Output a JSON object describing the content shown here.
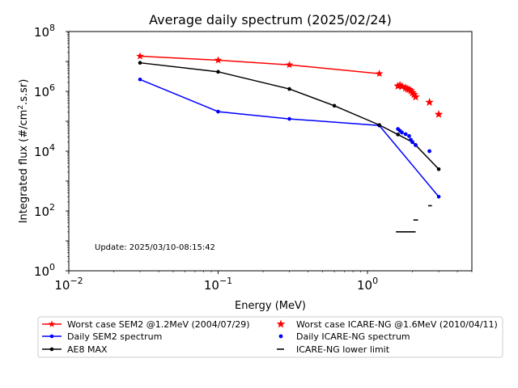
{
  "chart_data": {
    "type": "line",
    "title": "Average daily spectrum (2025/02/24)",
    "xlabel": "Energy (MeV)",
    "ylabel_prefix": "Integrated flux (#/cm",
    "ylabel_sup": "2",
    "ylabel_suffix": ".s.sr)",
    "xscale": "log",
    "yscale": "log",
    "xlim": [
      0.01,
      5
    ],
    "ylim": [
      1,
      100000000
    ],
    "x_ticks": [
      {
        "value": 0.01,
        "base": "10",
        "exp": "−2"
      },
      {
        "value": 0.1,
        "base": "10",
        "exp": "−1"
      },
      {
        "value": 1,
        "base": "10",
        "exp": "0"
      }
    ],
    "y_ticks": [
      {
        "value": 1,
        "base": "10",
        "exp": "0"
      },
      {
        "value": 100,
        "base": "10",
        "exp": "2"
      },
      {
        "value": 10000,
        "base": "10",
        "exp": "4"
      },
      {
        "value": 1000000,
        "base": "10",
        "exp": "6"
      },
      {
        "value": 100000000,
        "base": "10",
        "exp": "8"
      }
    ],
    "annotation": "Update: 2025/03/10-08:15:42",
    "legend_position": "below",
    "series": [
      {
        "name": "Worst case SEM2 @1.2MeV (2004/07/29)",
        "color": "#ff0000",
        "style": "line-star",
        "x": [
          0.03,
          0.1,
          0.3,
          1.2
        ],
        "y": [
          15000000,
          11000000,
          7700000,
          3900000
        ]
      },
      {
        "name": "Daily SEM2 spectrum",
        "color": "#0000ff",
        "style": "line-dot",
        "x": [
          0.03,
          0.1,
          0.3,
          1.2,
          3.0
        ],
        "y": [
          2500000,
          210000,
          120000,
          72000,
          300
        ]
      },
      {
        "name": "AE8 MAX",
        "color": "#000000",
        "style": "line-dot",
        "x": [
          0.03,
          0.1,
          0.3,
          0.6,
          1.2,
          1.6,
          2.0,
          2.1,
          3.0
        ],
        "y": [
          9000000,
          4500000,
          1200000,
          330000,
          75000,
          36000,
          20000,
          16000,
          2500
        ]
      },
      {
        "name": "Worst case ICARE-NG @1.6MeV (2010/04/11)",
        "color": "#ff0000",
        "style": "star",
        "x": [
          1.6,
          1.65,
          1.7,
          1.8,
          1.85,
          1.9,
          1.95,
          2.0,
          2.05,
          2.1,
          2.6,
          3.0
        ],
        "y": [
          1500000,
          1600000,
          1450000,
          1300000,
          1200000,
          1150000,
          1050000,
          900000,
          780000,
          650000,
          430000,
          170000
        ]
      },
      {
        "name": "Daily ICARE-NG spectrum",
        "color": "#0000ff",
        "style": "dot",
        "x": [
          1.6,
          1.65,
          1.7,
          1.8,
          1.9,
          1.95,
          2.0,
          2.1,
          2.6
        ],
        "y": [
          55000,
          48000,
          42000,
          37000,
          32000,
          24000,
          20000,
          16000,
          10000
        ]
      },
      {
        "name": "ICARE-NG lower limit",
        "color": "#000000",
        "style": "hline",
        "segments": [
          {
            "x": [
              1.55,
              2.1
            ],
            "y": 20
          },
          {
            "x": [
              2.03,
              2.18
            ],
            "y": 50
          },
          {
            "x": [
              2.55,
              2.7
            ],
            "y": 150
          }
        ]
      }
    ]
  }
}
